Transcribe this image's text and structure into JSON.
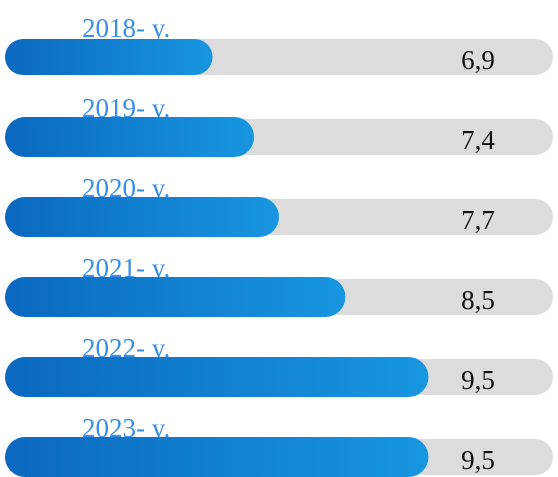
{
  "chart_data": {
    "type": "bar",
    "categories": [
      "2018- y.",
      "2019- y.",
      "2020- y.",
      "2021- y.",
      "2022- y.",
      "2023- y."
    ],
    "values": [
      6.9,
      7.4,
      7.7,
      8.5,
      9.5,
      9.5
    ],
    "value_labels": [
      "6,9",
      "7,4",
      "7,7",
      "8,5",
      "9,5",
      "9,5"
    ],
    "xlim": [
      4.4,
      11
    ],
    "color": "#0d74cc"
  }
}
